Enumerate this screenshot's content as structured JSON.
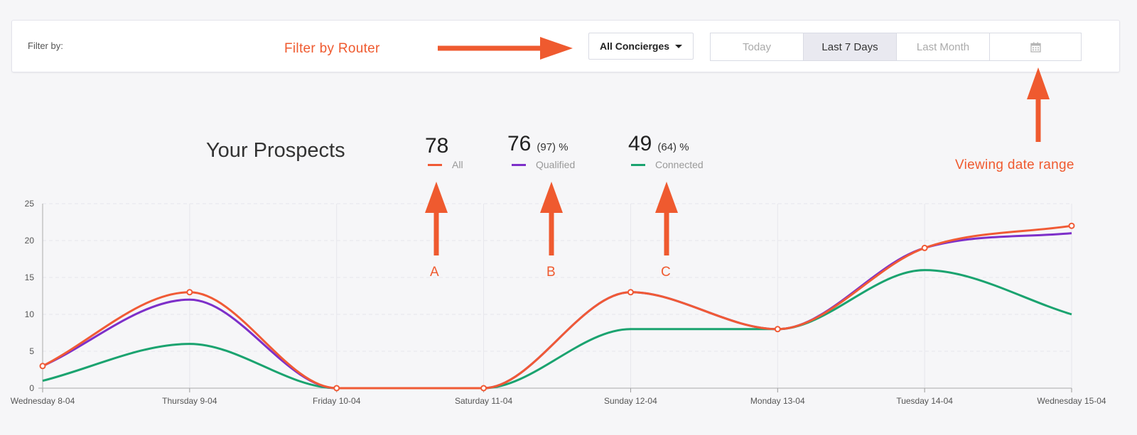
{
  "filter": {
    "label": "Filter by:",
    "router_select": "All Concierges",
    "ranges": [
      "Today",
      "Last 7 Days",
      "Last Month"
    ],
    "active_range": "Last 7 Days",
    "calendar_icon": "calendar-icon"
  },
  "annotations": {
    "filter_by_router": "Filter by Router",
    "viewing_date_range": "Viewing date range",
    "letter_a": "A",
    "letter_b": "B",
    "letter_c": "C",
    "arrow_color": "#ef5a2f"
  },
  "summary": {
    "title": "Your Prospects",
    "all": {
      "value": "78",
      "label": "All"
    },
    "qualified": {
      "value": "76",
      "pct": "(97) %",
      "label": "Qualified"
    },
    "connected": {
      "value": "49",
      "pct": "(64) %",
      "label": "Connected"
    }
  },
  "chart_data": {
    "type": "line",
    "categories": [
      "Wednesday 8-04",
      "Thursday 9-04",
      "Friday 10-04",
      "Saturday 11-04",
      "Sunday 12-04",
      "Monday 13-04",
      "Tuesday 14-04",
      "Wednesday 15-04"
    ],
    "ylim": [
      0,
      25
    ],
    "yticks": [
      0,
      5,
      10,
      15,
      20,
      25
    ],
    "grid": true,
    "series": [
      {
        "name": "All",
        "color": "#f05a35",
        "values": [
          3,
          13,
          0,
          0,
          13,
          8,
          19,
          22
        ],
        "markers": true
      },
      {
        "name": "Qualified",
        "color": "#7d2fc9",
        "values": [
          3,
          12,
          0,
          0,
          13,
          8,
          19,
          21
        ],
        "markers": false
      },
      {
        "name": "Connected",
        "color": "#1aa36f",
        "values": [
          1,
          6,
          0,
          0,
          8,
          8,
          16,
          10
        ],
        "markers": false
      }
    ]
  }
}
